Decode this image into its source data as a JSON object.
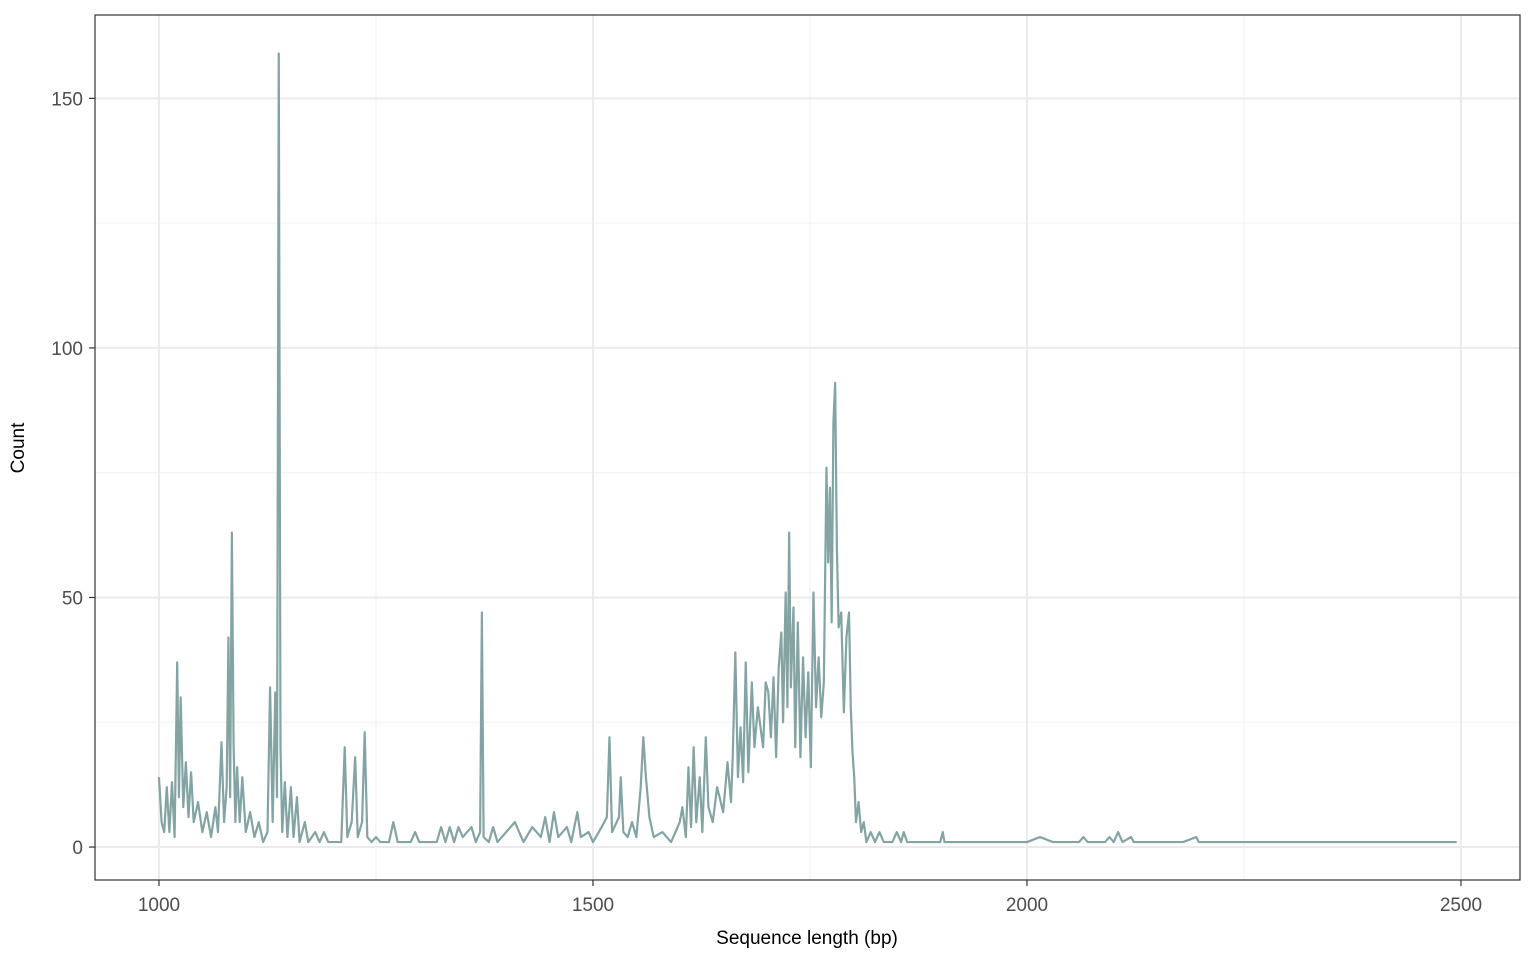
{
  "chart_data": {
    "type": "line",
    "x_label": "Sequence length (bp)",
    "y_label": "Count",
    "x": [
      1000,
      1003,
      1006,
      1009,
      1012,
      1015,
      1018,
      1021,
      1023,
      1025,
      1028,
      1031,
      1034,
      1037,
      1040,
      1045,
      1050,
      1055,
      1060,
      1065,
      1068,
      1072,
      1075,
      1078,
      1080,
      1082,
      1084,
      1086,
      1088,
      1090,
      1093,
      1096,
      1100,
      1105,
      1110,
      1115,
      1120,
      1125,
      1128,
      1131,
      1134,
      1136,
      1138,
      1140,
      1142,
      1145,
      1148,
      1152,
      1155,
      1159,
      1162,
      1168,
      1172,
      1180,
      1185,
      1190,
      1195,
      1210,
      1214,
      1217,
      1222,
      1226,
      1229,
      1234,
      1237,
      1240,
      1245,
      1250,
      1255,
      1265,
      1270,
      1275,
      1290,
      1295,
      1300,
      1320,
      1325,
      1330,
      1335,
      1340,
      1345,
      1350,
      1360,
      1365,
      1370,
      1372,
      1374,
      1380,
      1385,
      1390,
      1400,
      1410,
      1420,
      1430,
      1440,
      1445,
      1450,
      1455,
      1460,
      1470,
      1475,
      1482,
      1486,
      1495,
      1500,
      1510,
      1516,
      1519,
      1522,
      1530,
      1532,
      1535,
      1540,
      1545,
      1550,
      1555,
      1558,
      1561,
      1565,
      1570,
      1580,
      1590,
      1600,
      1603,
      1607,
      1610,
      1613,
      1616,
      1619,
      1623,
      1626,
      1630,
      1633,
      1638,
      1643,
      1650,
      1655,
      1659,
      1661,
      1664,
      1667,
      1670,
      1673,
      1676,
      1679,
      1683,
      1686,
      1690,
      1693,
      1696,
      1699,
      1702,
      1705,
      1708,
      1711,
      1714,
      1717,
      1719,
      1722,
      1724,
      1726,
      1728,
      1731,
      1733,
      1736,
      1739,
      1742,
      1745,
      1748,
      1751,
      1754,
      1757,
      1760,
      1763,
      1766,
      1769,
      1771,
      1773,
      1775,
      1777,
      1779,
      1781,
      1783,
      1786,
      1789,
      1792,
      1795,
      1797,
      1799,
      1801,
      1803,
      1806,
      1809,
      1812,
      1815,
      1820,
      1825,
      1830,
      1835,
      1845,
      1850,
      1855,
      1858,
      1862,
      1900,
      1903,
      1905,
      2000,
      2015,
      2030,
      2060,
      2065,
      2070,
      2090,
      2095,
      2100,
      2105,
      2110,
      2120,
      2123,
      2180,
      2195,
      2198,
      2495
    ],
    "series": [
      {
        "name": "Count",
        "color": "#84a3a3",
        "values": [
          14,
          5,
          3,
          12,
          3,
          13,
          2,
          37,
          10,
          30,
          8,
          17,
          6,
          15,
          5,
          9,
          3,
          7,
          2,
          8,
          3,
          21,
          5,
          12,
          42,
          10,
          63,
          20,
          5,
          16,
          5,
          14,
          3,
          7,
          2,
          5,
          1,
          3,
          32,
          5,
          31,
          10,
          159,
          20,
          3,
          13,
          2,
          12,
          2,
          10,
          1,
          5,
          1,
          3,
          1,
          3,
          1,
          1,
          20,
          2,
          5,
          18,
          2,
          5,
          23,
          2,
          1,
          2,
          1,
          1,
          5,
          1,
          1,
          3,
          1,
          1,
          4,
          1,
          4,
          1,
          4,
          2,
          4,
          1,
          3,
          47,
          2,
          1,
          4,
          1,
          3,
          5,
          1,
          4,
          2,
          6,
          1,
          7,
          2,
          4,
          1,
          7,
          2,
          3,
          1,
          4,
          6,
          22,
          3,
          6,
          14,
          3,
          2,
          5,
          2,
          12,
          22,
          14,
          6,
          2,
          3,
          1,
          5,
          8,
          2,
          16,
          4,
          20,
          5,
          14,
          3,
          22,
          8,
          5,
          12,
          7,
          17,
          9,
          18,
          39,
          14,
          24,
          13,
          37,
          15,
          33,
          20,
          28,
          24,
          20,
          33,
          31,
          22,
          34,
          18,
          36,
          43,
          25,
          51,
          28,
          63,
          32,
          48,
          20,
          45,
          18,
          38,
          22,
          35,
          16,
          51,
          28,
          38,
          26,
          33,
          76,
          57,
          72,
          45,
          85,
          93,
          60,
          44,
          47,
          27,
          42,
          47,
          28,
          19,
          14,
          5,
          9,
          3,
          5,
          1,
          3,
          1,
          3,
          1,
          1,
          3,
          1,
          3,
          1,
          1,
          3,
          1,
          1,
          2,
          1,
          1,
          2,
          1,
          1,
          2,
          1,
          3,
          1,
          2,
          1,
          1,
          2,
          1,
          1
        ]
      }
    ],
    "xlim": [
      926.3,
      2568
    ],
    "ylim": [
      -6.6,
      166.7
    ],
    "xticks": [
      1000,
      1500,
      2000,
      2500
    ],
    "yticks": [
      0,
      50,
      100,
      150
    ],
    "x_minor": [
      1250,
      1750,
      2250
    ],
    "y_minor": [
      25,
      75,
      125
    ],
    "grid": true
  }
}
